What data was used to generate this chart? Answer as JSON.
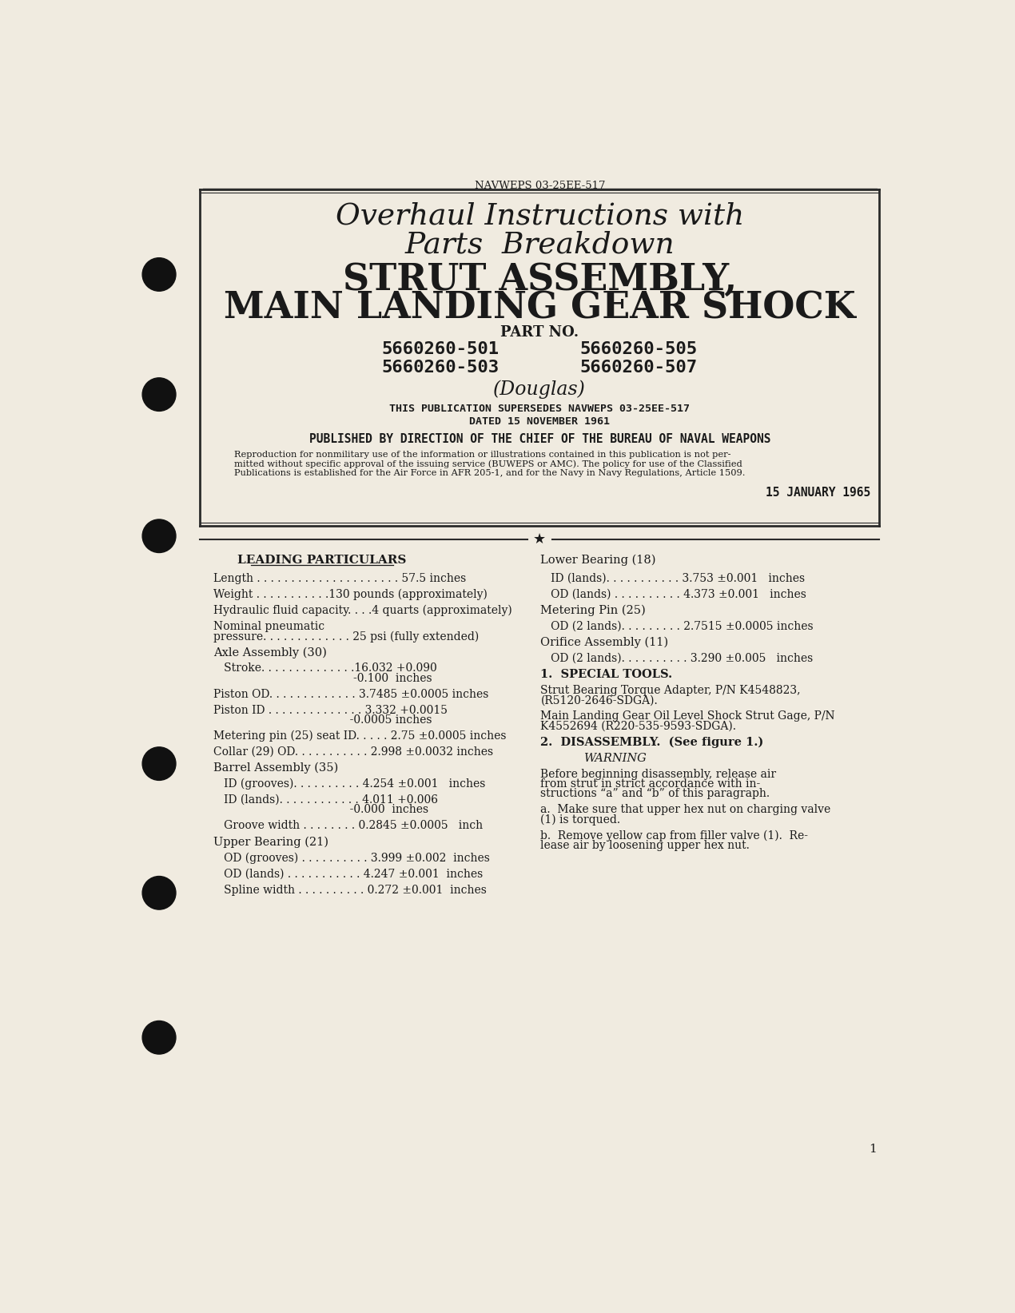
{
  "page_bg": "#f0ebe0",
  "border_color": "#2a2a2a",
  "text_color": "#1a1a1a",
  "header_doc_num": "NAVWEPS 03-25EE-517",
  "title_line1": "Overhaul Instructions with",
  "title_line2": "Parts  Breakdown",
  "title_line3": "STRUT ASSEMBLY,",
  "title_line4": "MAIN LANDING GEAR SHOCK",
  "part_no_label": "PART NO.",
  "part_nos": [
    [
      "5660260-501",
      "5660260-505"
    ],
    [
      "5660260-503",
      "5660260-507"
    ]
  ],
  "manufacturer": "(Douglas)",
  "supersedes_line1": "THIS PUBLICATION SUPERSEDES NAVWEPS 03-25EE-517",
  "supersedes_line2": "DATED 15 NOVEMBER 1961",
  "published_line": "PUBLISHED BY DIRECTION OF THE CHIEF OF THE BUREAU OF NAVAL WEAPONS",
  "repro_line1": "Reproduction for nonmilitary use of the information or illustrations contained in this publication is not per-",
  "repro_line2": "mitted without specific approval of the issuing service (BUWEPS or AMC). The policy for use of the Classified",
  "repro_line3": "Publications is established for the Air Force in AFR 205-1, and for the Navy in Navy Regulations, Article 1509.",
  "date": "15 JANUARY 1965",
  "section_left_title": "LEADING PARTICULARS",
  "section_right_title": "Lower Bearing (18)",
  "left_items": [
    {
      "text": "Length . . . . . . . . . . . . . . . . . . . . . 57.5 inches",
      "indent": 0,
      "header": false,
      "extra_lines": []
    },
    {
      "text": "Weight . . . . . . . . . . .130 pounds (approximately)",
      "indent": 0,
      "header": false,
      "extra_lines": []
    },
    {
      "text": "Hydraulic fluid capacity. . . .4 quarts (approximately)",
      "indent": 0,
      "header": false,
      "extra_lines": []
    },
    {
      "text": "Nominal pneumatic",
      "indent": 0,
      "header": false,
      "extra_lines": [
        "pressure. . . . . . . . . . . . . 25 psi (fully extended)"
      ]
    },
    {
      "text": "Axle Assembly (30)",
      "indent": 0,
      "header": true,
      "extra_lines": []
    },
    {
      "text": "   Stroke. . . . . . . . . . . . . .16.032 +0.090",
      "indent": 0,
      "header": false,
      "extra_lines": [
        "                                        -0.100  inches"
      ]
    },
    {
      "text": "Piston OD. . . . . . . . . . . . . 3.7485 ±0.0005 inches",
      "indent": 0,
      "header": false,
      "extra_lines": []
    },
    {
      "text": "Piston ID . . . . . . . . . . . . . . 3.332 +0.0015",
      "indent": 0,
      "header": false,
      "extra_lines": [
        "                                       -0.0005 inches"
      ]
    },
    {
      "text": "Metering pin (25) seat ID. . . . . 2.75 ±0.0005 inches",
      "indent": 0,
      "header": false,
      "extra_lines": []
    },
    {
      "text": "Collar (29) OD. . . . . . . . . . . 2.998 ±0.0032 inches",
      "indent": 0,
      "header": false,
      "extra_lines": []
    },
    {
      "text": "Barrel Assembly (35)",
      "indent": 0,
      "header": true,
      "extra_lines": []
    },
    {
      "text": "   ID (grooves). . . . . . . . . . 4.254 ±0.001   inches",
      "indent": 0,
      "header": false,
      "extra_lines": []
    },
    {
      "text": "   ID (lands). . . . . . . . . . . . 4.011 +0.006",
      "indent": 0,
      "header": false,
      "extra_lines": [
        "                                       -0.000  inches"
      ]
    },
    {
      "text": "   Groove width . . . . . . . . 0.2845 ±0.0005   inch",
      "indent": 0,
      "header": false,
      "extra_lines": []
    },
    {
      "text": "Upper Bearing (21)",
      "indent": 0,
      "header": true,
      "extra_lines": []
    },
    {
      "text": "   OD (grooves) . . . . . . . . . . 3.999 ±0.002  inches",
      "indent": 0,
      "header": false,
      "extra_lines": []
    },
    {
      "text": "   OD (lands) . . . . . . . . . . . 4.247 ±0.001  inches",
      "indent": 0,
      "header": false,
      "extra_lines": []
    },
    {
      "text": "   Spline width . . . . . . . . . . 0.272 ±0.001  inches",
      "indent": 0,
      "header": false,
      "extra_lines": []
    }
  ],
  "right_items": [
    {
      "text": "   ID (lands). . . . . . . . . . . 3.753 ±0.001   inches",
      "header": false,
      "bold": false,
      "italic": false,
      "extra_lines": [],
      "center": false
    },
    {
      "text": "   OD (lands) . . . . . . . . . . 4.373 ±0.001   inches",
      "header": false,
      "bold": false,
      "italic": false,
      "extra_lines": [],
      "center": false
    },
    {
      "text": "Metering Pin (25)",
      "header": true,
      "bold": false,
      "italic": false,
      "extra_lines": [],
      "center": false
    },
    {
      "text": "   OD (2 lands). . . . . . . . . 2.7515 ±0.0005 inches",
      "header": false,
      "bold": false,
      "italic": false,
      "extra_lines": [],
      "center": false
    },
    {
      "text": "Orifice Assembly (11)",
      "header": true,
      "bold": false,
      "italic": false,
      "extra_lines": [],
      "center": false
    },
    {
      "text": "   OD (2 lands). . . . . . . . . . 3.290 ±0.005   inches",
      "header": false,
      "bold": false,
      "italic": false,
      "extra_lines": [],
      "center": false
    },
    {
      "text": "1.  SPECIAL TOOLS.",
      "header": true,
      "bold": true,
      "italic": false,
      "extra_lines": [],
      "center": false
    },
    {
      "text": "Strut Bearing Torque Adapter, P/N K4548823,",
      "header": false,
      "bold": false,
      "italic": false,
      "extra_lines": [
        "(R5120-2646-SDGA)."
      ],
      "center": false
    },
    {
      "text": "Main Landing Gear Oil Level Shock Strut Gage, P/N",
      "header": false,
      "bold": false,
      "italic": false,
      "extra_lines": [
        "K4552694 (R220-535-9593-SDGA)."
      ],
      "center": false
    },
    {
      "text": "2.  DISASSEMBLY.  (See figure 1.)",
      "header": true,
      "bold": true,
      "italic": false,
      "extra_lines": [],
      "center": false
    },
    {
      "text": "WARNING",
      "header": true,
      "bold": false,
      "italic": true,
      "extra_lines": [],
      "center": true
    },
    {
      "text": "Before beginning disassembly, release air",
      "header": false,
      "bold": false,
      "italic": false,
      "extra_lines": [
        "from strut in strict accordance with in-",
        "structions “a” and “b” of this paragraph."
      ],
      "center": false
    },
    {
      "text": "a.  Make sure that upper hex nut on charging valve",
      "header": false,
      "bold": false,
      "italic": false,
      "extra_lines": [
        "(1) is torqued."
      ],
      "center": false
    },
    {
      "text": "b.  Remove yellow cap from filler valve (1).  Re-",
      "header": false,
      "bold": false,
      "italic": false,
      "extra_lines": [
        "lease air by loosening upper hex nut."
      ],
      "center": false
    }
  ],
  "page_num": "1"
}
